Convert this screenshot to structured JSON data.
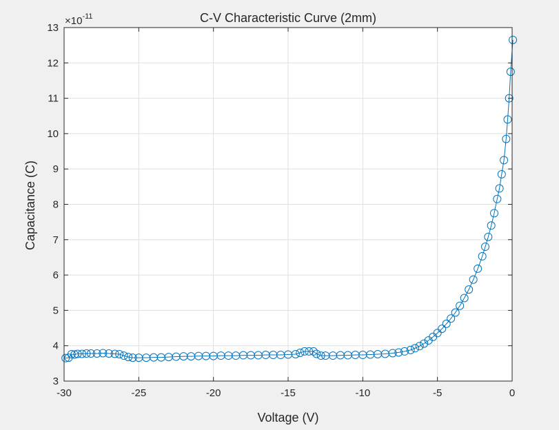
{
  "colors": {
    "figure_background": "#f0f0f0",
    "axes_background": "#ffffff",
    "axis_line": "#262626",
    "grid": "#dfdfdf",
    "series": "#0072bd"
  },
  "chart_data": {
    "type": "line",
    "title": "C-V Characteristic Curve (2mm)",
    "xlabel": "Voltage (V)",
    "ylabel": "Capacitance (C)",
    "y_exponent_base": "×10",
    "y_exponent_power": "-11",
    "xlim": [
      -30,
      0
    ],
    "ylim": [
      3,
      13
    ],
    "xticks": [
      -30,
      -25,
      -20,
      -15,
      -10,
      -5,
      0
    ],
    "yticks": [
      3,
      4,
      5,
      6,
      7,
      8,
      9,
      10,
      11,
      12,
      13
    ],
    "grid": true,
    "box": true,
    "marker": "circle",
    "line_style": "solid",
    "series": [
      {
        "note": "y values in units of 1e-11 F",
        "points": [
          [
            -29.9,
            3.65
          ],
          [
            -29.7,
            3.66
          ],
          [
            -29.5,
            3.76
          ],
          [
            -29.3,
            3.75
          ],
          [
            -29.1,
            3.77
          ],
          [
            -28.8,
            3.77
          ],
          [
            -28.5,
            3.78
          ],
          [
            -28.2,
            3.78
          ],
          [
            -27.8,
            3.78
          ],
          [
            -27.4,
            3.79
          ],
          [
            -27.0,
            3.78
          ],
          [
            -26.6,
            3.77
          ],
          [
            -26.3,
            3.76
          ],
          [
            -26.0,
            3.72
          ],
          [
            -25.7,
            3.68
          ],
          [
            -25.4,
            3.66
          ],
          [
            -25.0,
            3.66
          ],
          [
            -24.5,
            3.66
          ],
          [
            -24.0,
            3.67
          ],
          [
            -23.5,
            3.67
          ],
          [
            -23.0,
            3.68
          ],
          [
            -22.5,
            3.69
          ],
          [
            -22.0,
            3.7
          ],
          [
            -21.5,
            3.7
          ],
          [
            -21.0,
            3.71
          ],
          [
            -20.5,
            3.71
          ],
          [
            -20.0,
            3.71
          ],
          [
            -19.5,
            3.72
          ],
          [
            -19.0,
            3.72
          ],
          [
            -18.5,
            3.72
          ],
          [
            -18.0,
            3.73
          ],
          [
            -17.5,
            3.73
          ],
          [
            -17.0,
            3.73
          ],
          [
            -16.5,
            3.74
          ],
          [
            -16.0,
            3.74
          ],
          [
            -15.5,
            3.74
          ],
          [
            -15.0,
            3.75
          ],
          [
            -14.5,
            3.76
          ],
          [
            -14.2,
            3.8
          ],
          [
            -13.9,
            3.84
          ],
          [
            -13.6,
            3.84
          ],
          [
            -13.3,
            3.84
          ],
          [
            -13.1,
            3.77
          ],
          [
            -12.8,
            3.72
          ],
          [
            -12.5,
            3.72
          ],
          [
            -12.0,
            3.72
          ],
          [
            -11.5,
            3.73
          ],
          [
            -11.0,
            3.73
          ],
          [
            -10.5,
            3.74
          ],
          [
            -10.0,
            3.74
          ],
          [
            -9.5,
            3.75
          ],
          [
            -9.0,
            3.76
          ],
          [
            -8.5,
            3.77
          ],
          [
            -8.0,
            3.79
          ],
          [
            -7.6,
            3.81
          ],
          [
            -7.2,
            3.84
          ],
          [
            -6.8,
            3.88
          ],
          [
            -6.5,
            3.93
          ],
          [
            -6.2,
            3.99
          ],
          [
            -5.9,
            4.06
          ],
          [
            -5.6,
            4.15
          ],
          [
            -5.3,
            4.25
          ],
          [
            -5.0,
            4.36
          ],
          [
            -4.7,
            4.48
          ],
          [
            -4.4,
            4.62
          ],
          [
            -4.1,
            4.77
          ],
          [
            -3.8,
            4.94
          ],
          [
            -3.5,
            5.13
          ],
          [
            -3.2,
            5.35
          ],
          [
            -2.9,
            5.59
          ],
          [
            -2.6,
            5.87
          ],
          [
            -2.3,
            6.18
          ],
          [
            -2.0,
            6.53
          ],
          [
            -1.8,
            6.8
          ],
          [
            -1.6,
            7.08
          ],
          [
            -1.4,
            7.4
          ],
          [
            -1.2,
            7.75
          ],
          [
            -1.0,
            8.15
          ],
          [
            -0.85,
            8.45
          ],
          [
            -0.7,
            8.85
          ],
          [
            -0.55,
            9.25
          ],
          [
            -0.4,
            9.85
          ],
          [
            -0.3,
            10.4
          ],
          [
            -0.2,
            11.0
          ],
          [
            -0.1,
            11.75
          ],
          [
            0.05,
            12.65
          ]
        ]
      }
    ]
  }
}
